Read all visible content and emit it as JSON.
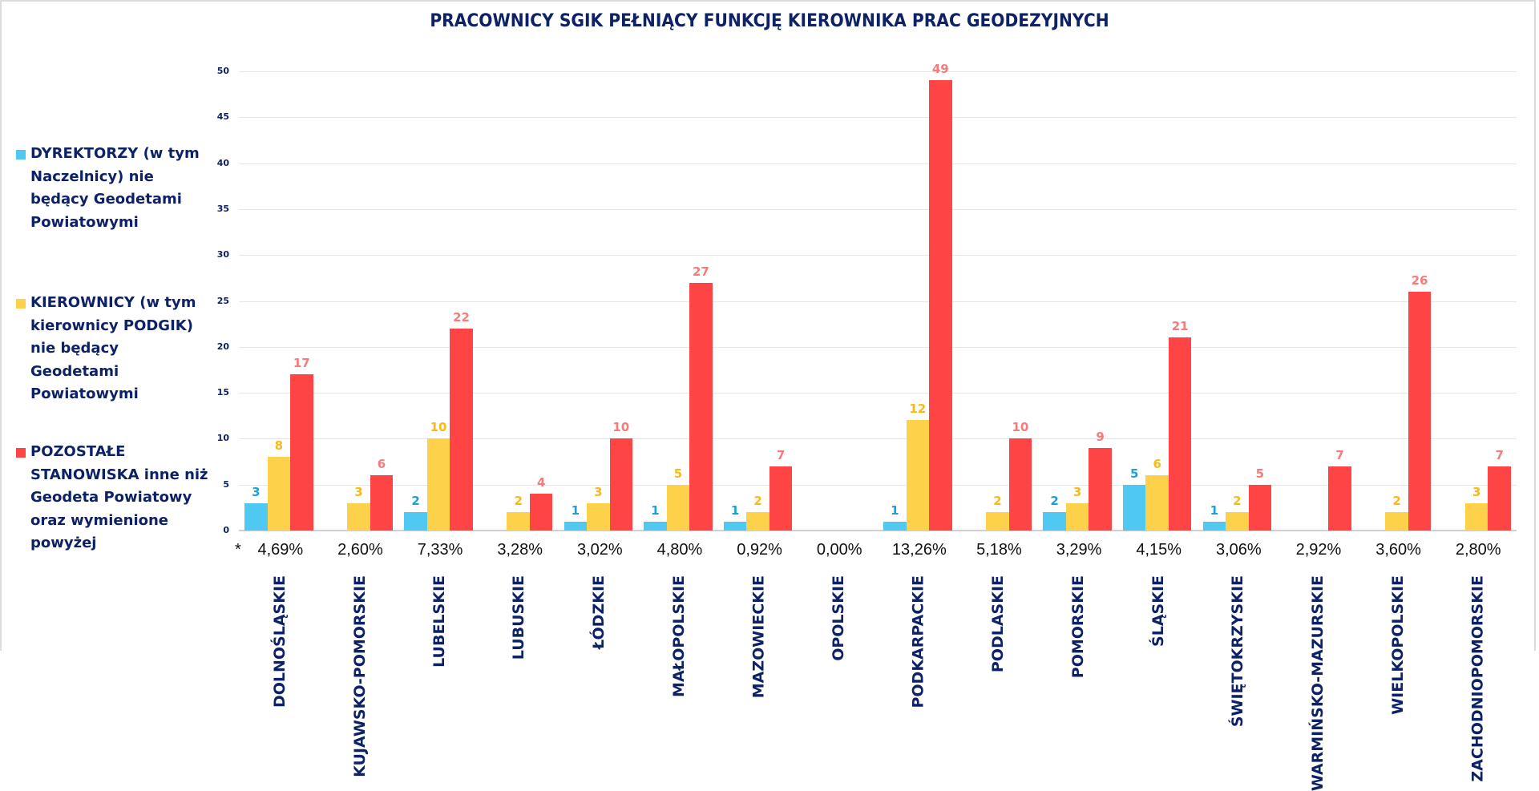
{
  "title": "PRACOWNICY SGIK PEŁNIĄCY FUNKCJĘ KIEROWNIKA PRAC GEODEZYJNYCH",
  "legend": [
    {
      "label": "DYREKTORZY (w tym Naczelnicy) nie będący Geodetami Powiatowymi",
      "color": "#4fc8f2"
    },
    {
      "label": "KIEROWNICY (w tym kierownicy PODGIK) nie będący Geodetami Powiatowymi",
      "color": "#fdd14a"
    },
    {
      "label": "POZOSTAŁE STANOWISKA inne niż Geodeta Powiatowy oraz wymienione powyżej",
      "color": "#fe4444"
    }
  ],
  "asterisk": "*",
  "colors": {
    "dyrektorzy_bar": "#4fc8f2",
    "kierownicy_bar": "#fdd14a",
    "pozostale_bar": "#fe4444",
    "dyrektorzy_label": "#1e9fd6",
    "kierownicy_label": "#fdb813",
    "pozostale_label": "#f77b7b",
    "text_navy": "#0d2266"
  },
  "chart_data": {
    "type": "bar",
    "title": "PRACOWNICY SGIK PEŁNIĄCY FUNKCJĘ KIEROWNIKA PRAC GEODEZYJNYCH",
    "xlabel": "",
    "ylabel": "",
    "ylim": [
      0,
      50
    ],
    "yticks": [
      0,
      5,
      10,
      15,
      20,
      25,
      30,
      35,
      40,
      45,
      50
    ],
    "grid": true,
    "legend_position": "left",
    "categories": [
      "DOLNOŚLĄSKIE",
      "KUJAWSKO-POMORSKIE",
      "LUBELSKIE",
      "LUBUSKIE",
      "ŁÓDZKIE",
      "MAŁOPOLSKIE",
      "MAZOWIECKIE",
      "OPOLSKIE",
      "PODKARPACKIE",
      "PODLASKIE",
      "POMORSKIE",
      "ŚLĄSKIE",
      "ŚWIĘTOKRZYSKIE",
      "WARMIŃSKO-MAZURSKIE",
      "WIELKOPOLSKIE",
      "ZACHODNIOPOMORSKIE"
    ],
    "percentages": [
      "4,69%",
      "2,60%",
      "7,33%",
      "3,28%",
      "3,02%",
      "4,80%",
      "0,92%",
      "0,00%",
      "13,26%",
      "5,18%",
      "3,29%",
      "4,15%",
      "3,06%",
      "2,92%",
      "3,60%",
      "2,80%"
    ],
    "series": [
      {
        "name": "DYREKTORZY (w tym Naczelnicy) nie będący Geodetami Powiatowymi",
        "values": [
          3,
          0,
          2,
          0,
          1,
          1,
          1,
          0,
          1,
          0,
          2,
          5,
          1,
          0,
          0,
          0
        ]
      },
      {
        "name": "KIEROWNICY (w tym kierownicy PODGIK) nie będący Geodetami Powiatowymi",
        "values": [
          8,
          3,
          10,
          2,
          3,
          5,
          2,
          0,
          12,
          2,
          3,
          6,
          2,
          0,
          2,
          3
        ]
      },
      {
        "name": "POZOSTAŁE STANOWISKA inne niż Geodeta Powiatowy oraz wymienione powyżej",
        "values": [
          17,
          6,
          22,
          4,
          10,
          27,
          7,
          0,
          49,
          10,
          9,
          21,
          5,
          7,
          26,
          7
        ]
      }
    ]
  }
}
